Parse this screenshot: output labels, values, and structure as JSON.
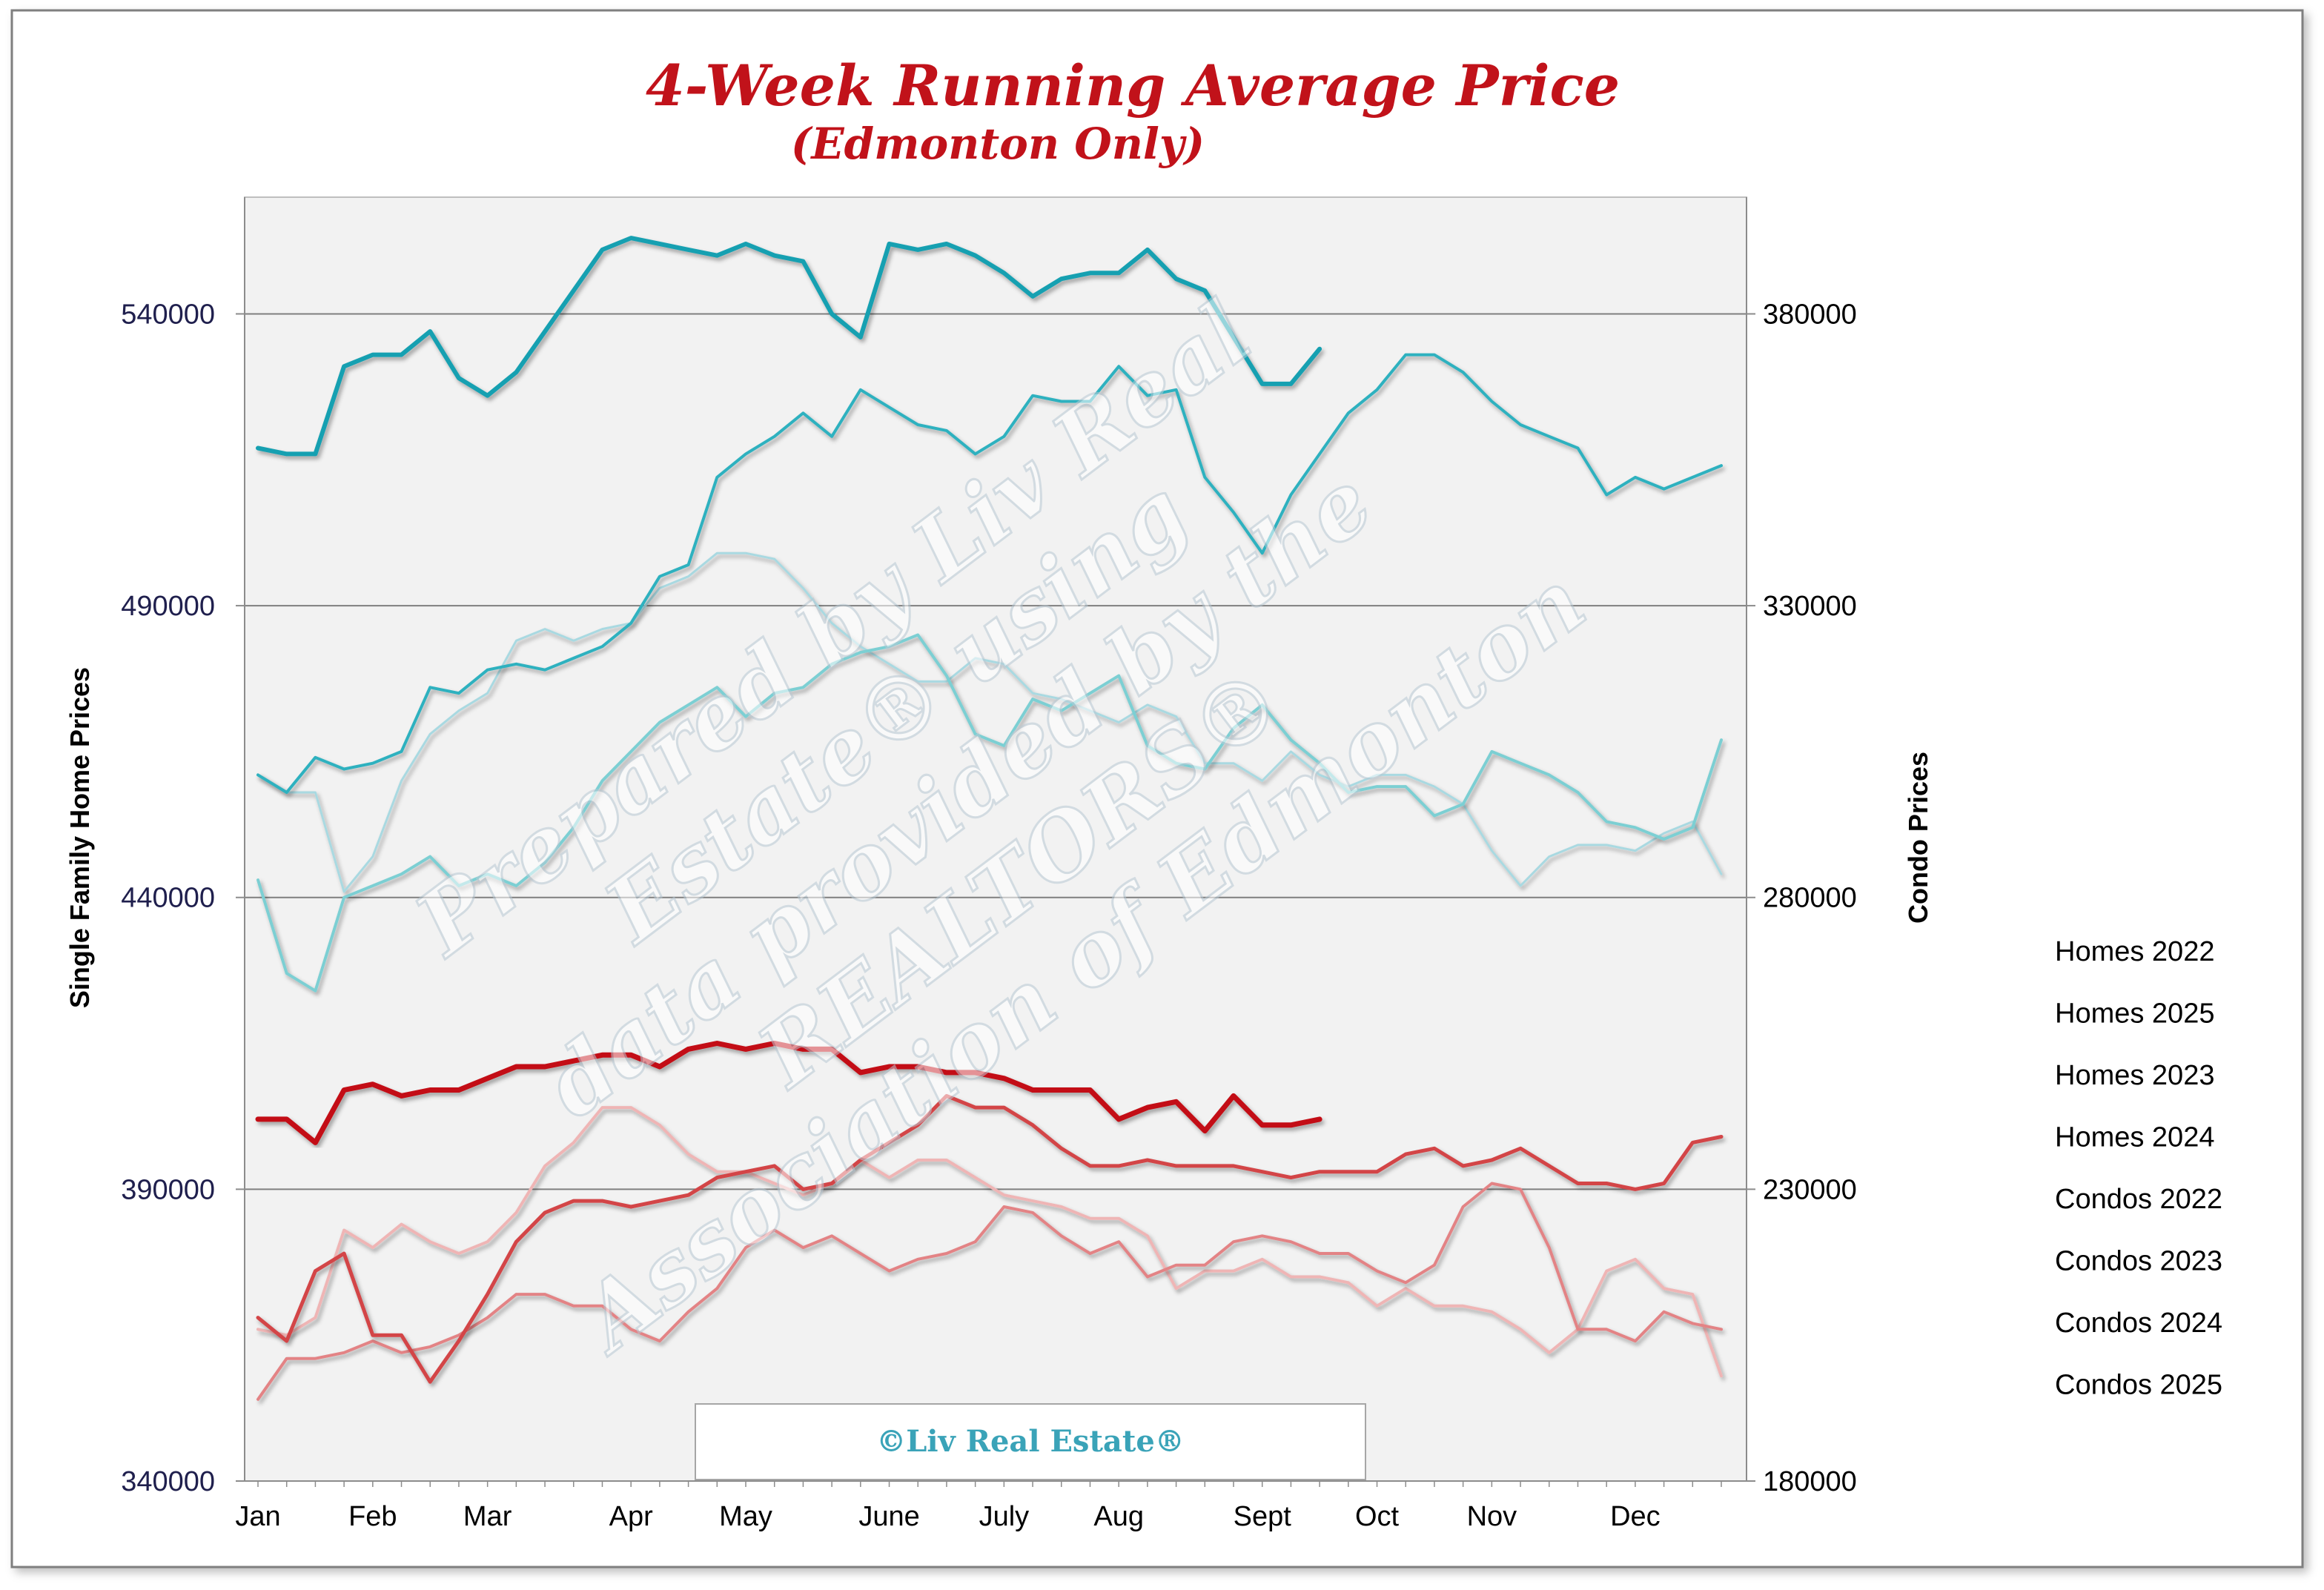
{
  "chart_data": {
    "type": "line",
    "title": "4-Week Running Average Price",
    "subtitle": "(Edmonton Only)",
    "ylabel_left": "Single Family Home Prices",
    "ylabel_right": "Condo Prices",
    "watermark": [
      "Prepared by Liv Real",
      "Estate® using",
      "data provided by the",
      "REALTORS®",
      "Association of Edmonton"
    ],
    "credit": "©Liv Real Estate®",
    "x_domain": [
      1,
      52
    ],
    "month_labels": [
      {
        "label": "Jan",
        "week": 1
      },
      {
        "label": "Feb",
        "week": 5
      },
      {
        "label": "Mar",
        "week": 9
      },
      {
        "label": "Apr",
        "week": 14
      },
      {
        "label": "May",
        "week": 18
      },
      {
        "label": "June",
        "week": 23
      },
      {
        "label": "July",
        "week": 27
      },
      {
        "label": "Aug",
        "week": 31
      },
      {
        "label": "Sept",
        "week": 36
      },
      {
        "label": "Oct",
        "week": 40
      },
      {
        "label": "Nov",
        "week": 44
      },
      {
        "label": "Dec",
        "week": 49
      }
    ],
    "y_left": {
      "min": 340000,
      "max": 560000,
      "ticks": [
        340000,
        390000,
        440000,
        490000,
        540000
      ]
    },
    "y_right": {
      "min": 180000,
      "max": 400000,
      "ticks": [
        180000,
        230000,
        280000,
        330000,
        380000
      ]
    },
    "grid": "horizontal",
    "legend_position": "right",
    "series": [
      {
        "name": "Homes 2022",
        "axis": "left",
        "color": "#a9d9e1",
        "width": 3,
        "values": [
          461000,
          458000,
          458000,
          441000,
          447000,
          460000,
          468000,
          472000,
          475000,
          484000,
          486000,
          484000,
          486000,
          487000,
          493000,
          495000,
          499000,
          499000,
          498000,
          493000,
          487000,
          483000,
          480000,
          477000,
          477000,
          481000,
          480000,
          475000,
          474000,
          472000,
          470000,
          473000,
          471000,
          463000,
          463000,
          460000,
          465000,
          461000,
          459000,
          461000,
          461000,
          459000,
          456000,
          448000,
          442000,
          447000,
          449000,
          449000,
          448000,
          451000,
          453000,
          444000
        ]
      },
      {
        "name": "Homes 2025",
        "axis": "left",
        "color": "#16a0b1",
        "width": 6,
        "values": [
          517000,
          516000,
          516000,
          531000,
          533000,
          533000,
          537000,
          529000,
          526000,
          530000,
          537000,
          544000,
          551000,
          553000,
          552000,
          551000,
          550000,
          552000,
          550000,
          549000,
          540000,
          536000,
          552000,
          551000,
          552000,
          550000,
          547000,
          543000,
          546000,
          547000,
          547000,
          551000,
          546000,
          544000,
          536000,
          528000,
          528000,
          534000
        ]
      },
      {
        "name": "Homes 2023",
        "axis": "left",
        "color": "#7ccfd3",
        "width": 4,
        "values": [
          443000,
          427000,
          424000,
          440000,
          442000,
          444000,
          447000,
          442000,
          444000,
          442000,
          446000,
          452000,
          460000,
          465000,
          470000,
          473000,
          476000,
          471000,
          475000,
          476000,
          480000,
          482000,
          483000,
          485000,
          478000,
          468000,
          466000,
          474000,
          472000,
          475000,
          478000,
          466000,
          463000,
          462000,
          469000,
          473000,
          467000,
          463000,
          458000,
          459000,
          459000,
          454000,
          456000,
          465000,
          463000,
          461000,
          458000,
          453000,
          452000,
          450000,
          452000,
          467000
        ]
      },
      {
        "name": "Homes 2024",
        "axis": "left",
        "color": "#2db1bf",
        "width": 4,
        "values": [
          461000,
          458000,
          464000,
          462000,
          463000,
          465000,
          476000,
          475000,
          479000,
          480000,
          479000,
          481000,
          483000,
          487000,
          495000,
          497000,
          512000,
          516000,
          519000,
          523000,
          519000,
          527000,
          524000,
          521000,
          520000,
          516000,
          519000,
          526000,
          525000,
          525000,
          531000,
          526000,
          527000,
          512000,
          506000,
          499000,
          509000,
          516000,
          523000,
          527000,
          533000,
          533000,
          530000,
          525000,
          521000,
          519000,
          517000,
          509000,
          512000,
          510000,
          512000,
          514000
        ]
      },
      {
        "name": "Condos 2022",
        "axis": "right",
        "color": "#efb5b5",
        "width": 4,
        "values": [
          206000,
          205000,
          208000,
          223000,
          220000,
          224000,
          221000,
          219000,
          221000,
          226000,
          234000,
          238000,
          244000,
          244000,
          241000,
          236000,
          233000,
          233000,
          231000,
          229000,
          231000,
          235000,
          232000,
          235000,
          235000,
          232000,
          229000,
          228000,
          227000,
          225000,
          225000,
          222000,
          213000,
          216000,
          216000,
          218000,
          215000,
          215000,
          214000,
          210000,
          213000,
          210000,
          210000,
          209000,
          206000,
          202000,
          206000,
          216000,
          218000,
          213000,
          212000,
          198000
        ]
      },
      {
        "name": "Condos 2023",
        "axis": "right",
        "color": "#e38385",
        "width": 4,
        "values": [
          194000,
          201000,
          201000,
          202000,
          204000,
          202000,
          203000,
          205000,
          208000,
          212000,
          212000,
          210000,
          210000,
          206000,
          204000,
          209000,
          213000,
          220000,
          223000,
          220000,
          222000,
          219000,
          216000,
          218000,
          219000,
          221000,
          227000,
          226000,
          222000,
          219000,
          221000,
          215000,
          217000,
          217000,
          221000,
          222000,
          221000,
          219000,
          219000,
          216000,
          214000,
          217000,
          227000,
          231000,
          230000,
          220000,
          206000,
          206000,
          204000,
          209000,
          207000,
          206000
        ]
      },
      {
        "name": "Condos 2024",
        "axis": "right",
        "color": "#d34447",
        "width": 5,
        "values": [
          208000,
          204000,
          216000,
          219000,
          205000,
          205000,
          197000,
          204000,
          212000,
          221000,
          226000,
          228000,
          228000,
          227000,
          228000,
          229000,
          232000,
          233000,
          234000,
          230000,
          231000,
          235000,
          238000,
          241000,
          246000,
          244000,
          244000,
          241000,
          237000,
          234000,
          234000,
          235000,
          234000,
          234000,
          234000,
          233000,
          232000,
          233000,
          233000,
          233000,
          236000,
          237000,
          234000,
          235000,
          237000,
          234000,
          231000,
          231000,
          230000,
          231000,
          238000,
          239000
        ]
      },
      {
        "name": "Condos 2025",
        "axis": "right",
        "color": "#c30b12",
        "width": 7,
        "values": [
          242000,
          242000,
          238000,
          247000,
          248000,
          246000,
          247000,
          247000,
          249000,
          251000,
          251000,
          252000,
          253000,
          253000,
          251000,
          254000,
          255000,
          254000,
          255000,
          254000,
          254000,
          250000,
          251000,
          251000,
          250000,
          250000,
          249000,
          247000,
          247000,
          247000,
          242000,
          244000,
          245000,
          240000,
          246000,
          241000,
          241000,
          242000
        ]
      }
    ]
  }
}
